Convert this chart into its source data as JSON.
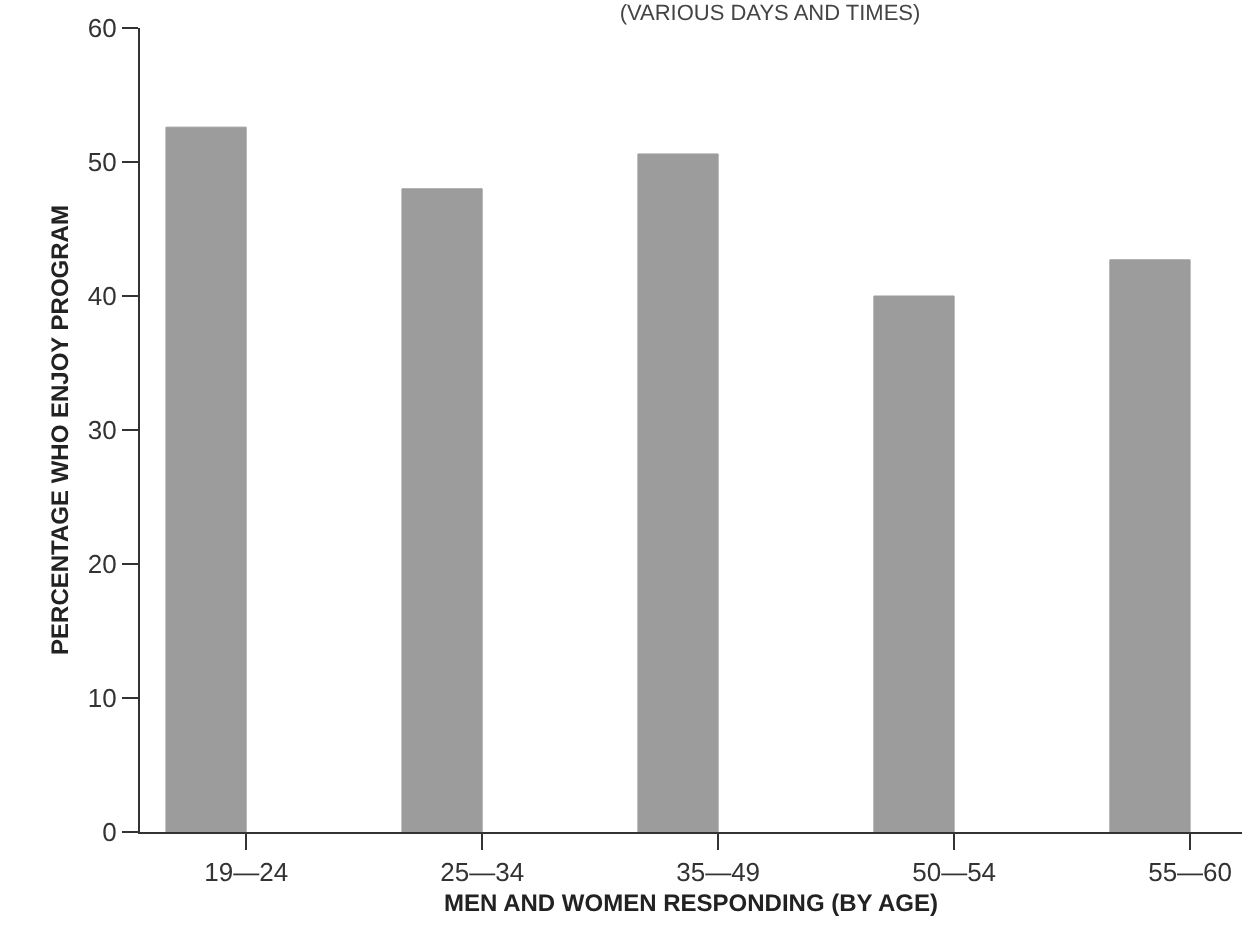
{
  "chart_data": {
    "type": "bar",
    "title": "(VARIOUS DAYS AND TIMES)",
    "xlabel": "MEN AND WOMEN RESPONDING (BY AGE)",
    "ylabel": "PERCENTAGE WHO ENJOY PROGRAM",
    "categories": [
      "19—24",
      "25—34",
      "35—49",
      "50—54",
      "55—60"
    ],
    "values": [
      52.6,
      48.0,
      50.6,
      40.0,
      42.7
    ],
    "color": "#9c9c9c",
    "ylim": [
      0,
      60
    ],
    "yticks": [
      0,
      10,
      20,
      30,
      40,
      50,
      60
    ],
    "legend": false
  }
}
